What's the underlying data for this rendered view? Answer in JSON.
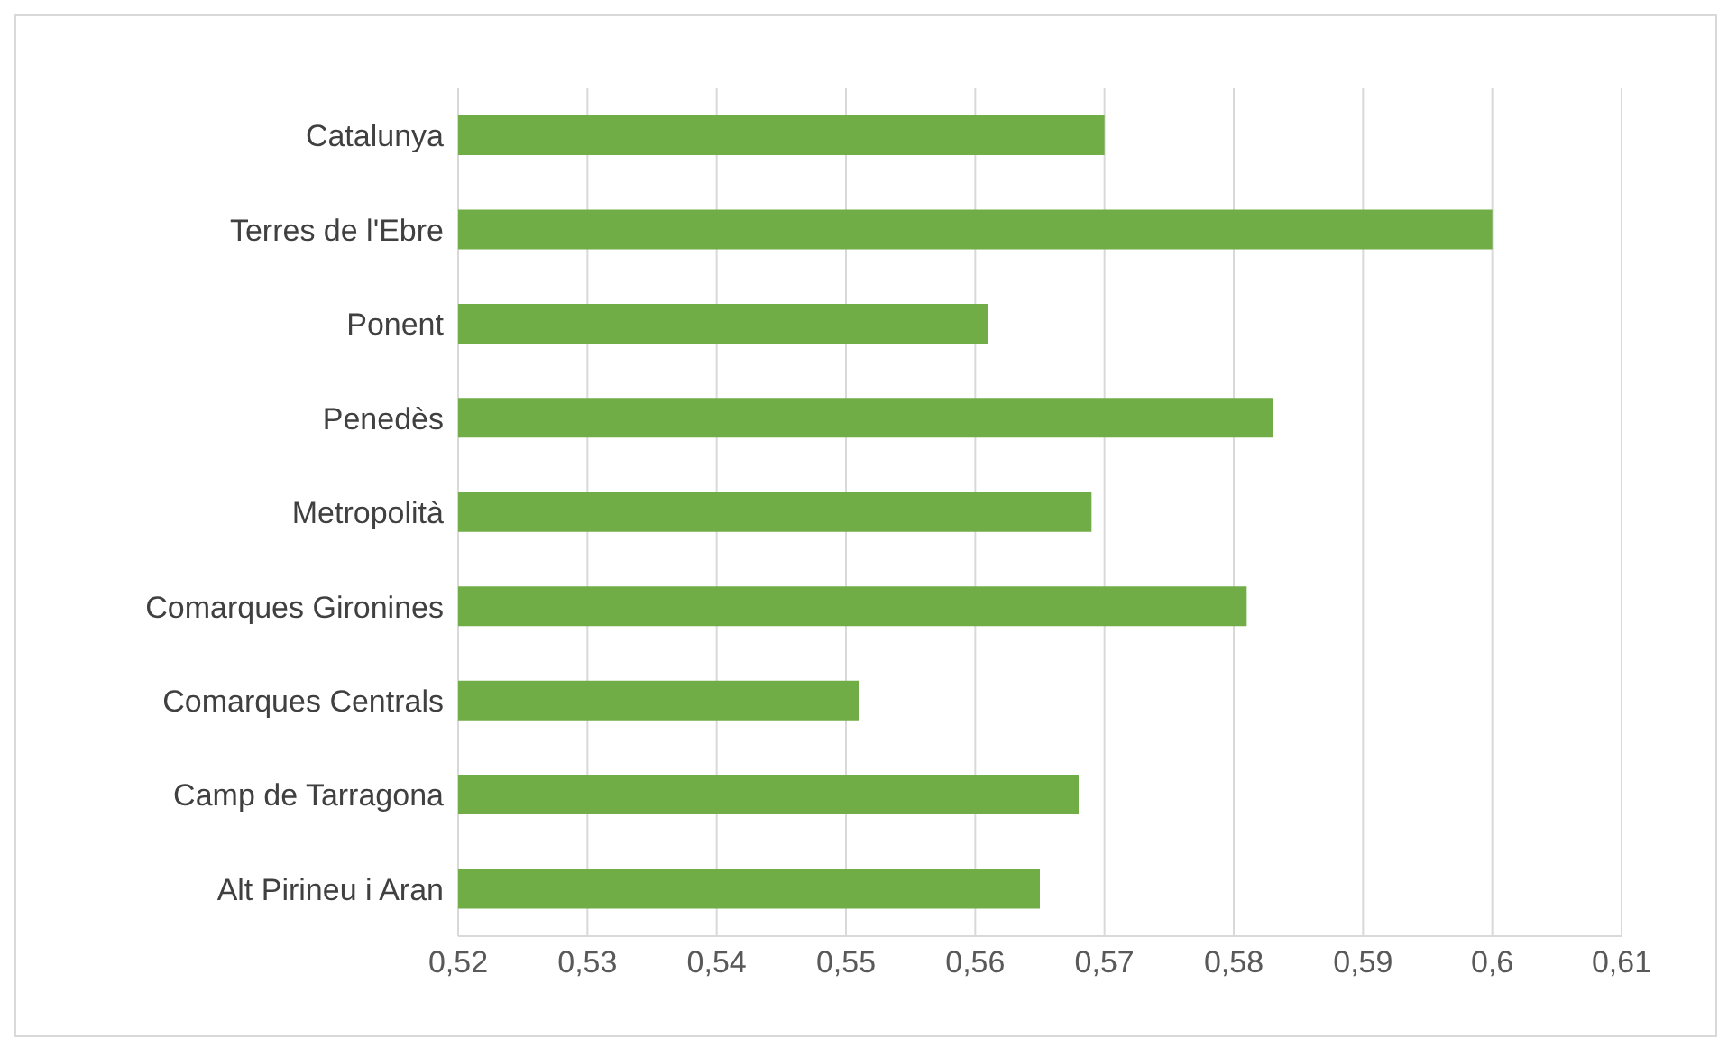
{
  "chart_data": {
    "type": "bar",
    "orientation": "horizontal",
    "categories": [
      "Catalunya",
      "Terres de l'Ebre",
      "Ponent",
      "Penedès",
      "Metropolità",
      "Comarques Gironines",
      "Comarques Centrals",
      "Camp de Tarragona",
      "Alt Pirineu i Aran"
    ],
    "values": [
      0.57,
      0.6,
      0.561,
      0.583,
      0.569,
      0.581,
      0.551,
      0.568,
      0.565
    ],
    "color": "#70ad47",
    "xlim": [
      0.52,
      0.61
    ],
    "xticks": [
      {
        "value": 0.52,
        "label": "0,52"
      },
      {
        "value": 0.53,
        "label": "0,53"
      },
      {
        "value": 0.54,
        "label": "0,54"
      },
      {
        "value": 0.55,
        "label": "0,55"
      },
      {
        "value": 0.56,
        "label": "0,56"
      },
      {
        "value": 0.57,
        "label": "0,57"
      },
      {
        "value": 0.58,
        "label": "0,58"
      },
      {
        "value": 0.59,
        "label": "0,59"
      },
      {
        "value": 0.6,
        "label": "0,6"
      },
      {
        "value": 0.61,
        "label": "0,61"
      }
    ],
    "grid": "x"
  }
}
